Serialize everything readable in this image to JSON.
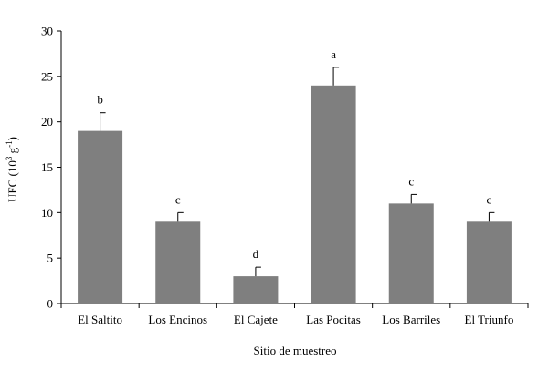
{
  "chart_data": {
    "type": "bar",
    "title": "",
    "xlabel": "Sitio de muestreo",
    "ylabel_main": "UFC (10",
    "ylabel_exp1": "3",
    "ylabel_mid": " g",
    "ylabel_exp2": "-1",
    "ylabel_end": ")",
    "ylim": [
      0,
      30
    ],
    "yticks": [
      0,
      5,
      10,
      15,
      20,
      25,
      30
    ],
    "grid": false,
    "legend": "none",
    "bar_color": "#7f7f7f",
    "categories": [
      "El Saltito",
      "Los Encinos",
      "El Cajete",
      "Las Pocitas",
      "Los Barriles",
      "El Triunfo"
    ],
    "values": [
      19,
      9,
      3,
      24,
      11,
      9
    ],
    "errors": [
      2,
      1,
      1,
      2,
      1,
      1
    ],
    "significance": [
      "b",
      "c",
      "d",
      "a",
      "c",
      "c"
    ]
  }
}
